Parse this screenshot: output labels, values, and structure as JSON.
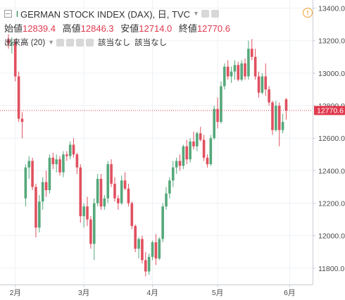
{
  "legend": {
    "symbol": "GERMAN STOCK INDEX (DAX), 日, TVC",
    "ohlc": [
      {
        "label": "始値",
        "value": "12839.4"
      },
      {
        "label": "高値",
        "value": "12846.3"
      },
      {
        "label": "安値",
        "value": "12714.0"
      },
      {
        "label": "終値",
        "value": "12770.6"
      }
    ],
    "volume_label": "出来高 (20)",
    "na1": "該当なし",
    "na2": "該当なし",
    "warning": "!"
  },
  "price_tag": "12770.6",
  "colors": {
    "up": "#55a87a",
    "down": "#e0505f",
    "grid": "#eef1f5",
    "tag_bg": "#e0394e"
  },
  "chart_data": {
    "type": "candlestick",
    "y_axis_ticks": [
      "13400.0",
      "13200.0",
      "13000.0",
      "12800.0",
      "12600.0",
      "12400.0",
      "12200.0",
      "12000.0",
      "11800.0"
    ],
    "ylim": [
      11700,
      13450
    ],
    "x_ticks": [
      {
        "label": "2月",
        "index": 2
      },
      {
        "label": "3月",
        "index": 22
      },
      {
        "label": "4月",
        "index": 42
      },
      {
        "label": "5月",
        "index": 61
      },
      {
        "label": "6月",
        "index": 82
      }
    ],
    "last_close": 12770.6,
    "candles": [
      [
        13210,
        13240,
        13150,
        13180
      ],
      [
        13180,
        13220,
        13120,
        13190
      ],
      [
        13190,
        13210,
        12950,
        12980
      ],
      [
        12980,
        13010,
        12700,
        12720
      ],
      [
        12720,
        12760,
        12600,
        12700
      ],
      [
        12230,
        12440,
        12180,
        12420
      ],
      [
        12420,
        12490,
        12350,
        12460
      ],
      [
        12460,
        12480,
        12280,
        12300
      ],
      [
        12300,
        12320,
        11990,
        12050
      ],
      [
        12050,
        12250,
        12020,
        12210
      ],
      [
        12210,
        12360,
        12160,
        12330
      ],
      [
        12330,
        12400,
        12240,
        12280
      ],
      [
        12280,
        12500,
        12260,
        12480
      ],
      [
        12480,
        12510,
        12410,
        12440
      ],
      [
        12440,
        12500,
        12390,
        12470
      ],
      [
        12470,
        12490,
        12370,
        12390
      ],
      [
        12390,
        12520,
        12360,
        12500
      ],
      [
        12500,
        12520,
        12460,
        12490
      ],
      [
        12490,
        12580,
        12470,
        12560
      ],
      [
        12560,
        12600,
        12480,
        12500
      ],
      [
        12500,
        12510,
        12380,
        12420
      ],
      [
        12420,
        12440,
        12080,
        12120
      ],
      [
        12120,
        12200,
        12050,
        12180
      ],
      [
        12180,
        12240,
        12060,
        12100
      ],
      [
        12100,
        12120,
        11920,
        11950
      ],
      [
        11950,
        12230,
        11850,
        12200
      ],
      [
        12200,
        12380,
        12180,
        12350
      ],
      [
        12350,
        12380,
        12160,
        12180
      ],
      [
        12180,
        12250,
        12160,
        12230
      ],
      [
        12230,
        12460,
        12200,
        12440
      ],
      [
        12440,
        12470,
        12300,
        12320
      ],
      [
        12320,
        12360,
        12210,
        12230
      ],
      [
        12230,
        12250,
        12160,
        12200
      ],
      [
        12200,
        12370,
        12190,
        12340
      ],
      [
        12340,
        12390,
        12280,
        12290
      ],
      [
        12290,
        12320,
        12180,
        12200
      ],
      [
        12200,
        12210,
        12040,
        12060
      ],
      [
        12060,
        12070,
        11900,
        11920
      ],
      [
        11920,
        11990,
        11860,
        11980
      ],
      [
        11980,
        12000,
        11830,
        11850
      ],
      [
        11850,
        11900,
        11750,
        11780
      ],
      [
        11780,
        11890,
        11760,
        11870
      ],
      [
        11870,
        11970,
        11850,
        11960
      ],
      [
        11960,
        12010,
        11820,
        11860
      ],
      [
        11860,
        11990,
        11850,
        11980
      ],
      [
        11980,
        12200,
        11960,
        12180
      ],
      [
        12180,
        12300,
        12160,
        12260
      ],
      [
        12260,
        12360,
        12230,
        12340
      ],
      [
        12340,
        12460,
        12300,
        12420
      ],
      [
        12420,
        12480,
        12380,
        12460
      ],
      [
        12460,
        12500,
        12400,
        12430
      ],
      [
        12430,
        12560,
        12410,
        12550
      ],
      [
        12550,
        12590,
        12440,
        12470
      ],
      [
        12470,
        12600,
        12450,
        12580
      ],
      [
        12580,
        12640,
        12530,
        12550
      ],
      [
        12550,
        12640,
        12520,
        12630
      ],
      [
        12630,
        12670,
        12580,
        12590
      ],
      [
        12590,
        12620,
        12460,
        12480
      ],
      [
        12480,
        12500,
        12420,
        12440
      ],
      [
        12440,
        12620,
        12430,
        12600
      ],
      [
        12600,
        12800,
        12590,
        12780
      ],
      [
        12780,
        12850,
        12660,
        12700
      ],
      [
        12700,
        12950,
        12690,
        12920
      ],
      [
        12920,
        13060,
        12900,
        13040
      ],
      [
        13040,
        13080,
        12960,
        12980
      ],
      [
        12980,
        13040,
        12940,
        13010
      ],
      [
        13010,
        13080,
        12960,
        13050
      ],
      [
        13050,
        13070,
        12950,
        12960
      ],
      [
        12960,
        13080,
        12950,
        13060
      ],
      [
        13060,
        13090,
        12960,
        12980
      ],
      [
        12980,
        13200,
        12960,
        13150
      ],
      [
        13150,
        13210,
        13080,
        13100
      ],
      [
        13100,
        13150,
        12960,
        12980
      ],
      [
        12980,
        13010,
        12850,
        12880
      ],
      [
        12880,
        13000,
        12870,
        12980
      ],
      [
        12980,
        13060,
        12860,
        12900
      ],
      [
        12900,
        12920,
        12800,
        12820
      ],
      [
        12820,
        12830,
        12620,
        12650
      ],
      [
        12650,
        12830,
        12640,
        12800
      ],
      [
        12800,
        12820,
        12550,
        12650
      ],
      [
        12650,
        12750,
        12630,
        12700
      ],
      [
        12839.4,
        12846.3,
        12714.0,
        12770.6
      ]
    ]
  }
}
